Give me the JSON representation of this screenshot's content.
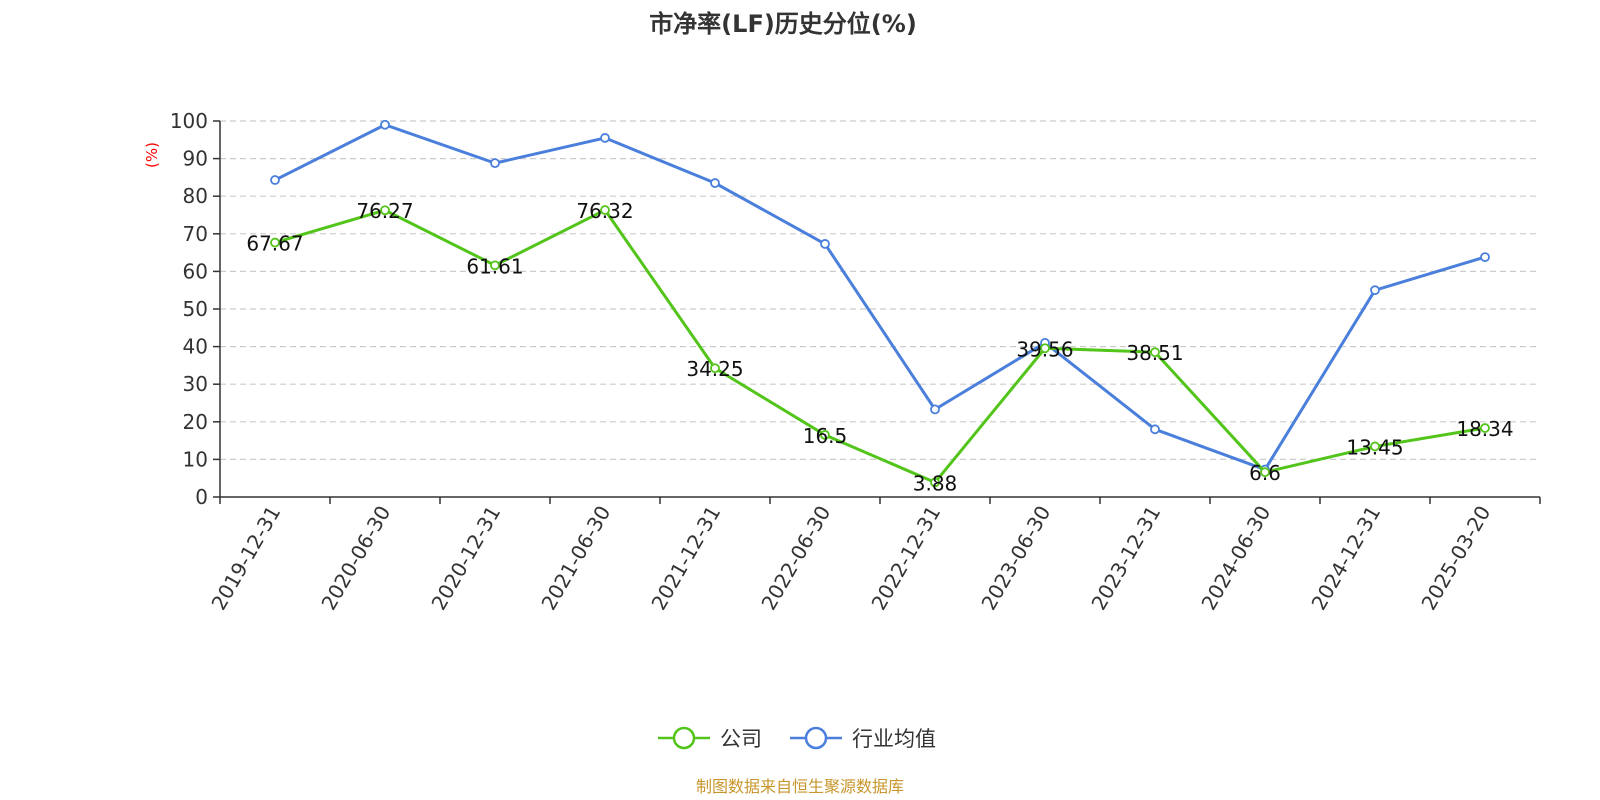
{
  "chart_data": {
    "type": "line",
    "title": "市净率(LF)历史分位(%)",
    "ylabel": "(%)",
    "ylabel_color": "#ff0000",
    "ylim": [
      0,
      100
    ],
    "yticks": [
      0,
      10,
      20,
      30,
      40,
      50,
      60,
      70,
      80,
      90,
      100
    ],
    "grid": true,
    "legend_position": "bottom-center",
    "categories": [
      "2019-12-31",
      "2020-06-30",
      "2020-12-31",
      "2021-06-30",
      "2021-12-31",
      "2022-06-30",
      "2022-12-31",
      "2023-06-30",
      "2023-12-31",
      "2024-06-30",
      "2024-12-31",
      "2025-03-20"
    ],
    "series": [
      {
        "name": "公司",
        "color": "#52c41a",
        "values": [
          67.67,
          76.27,
          61.61,
          76.32,
          34.25,
          16.5,
          3.88,
          39.56,
          38.51,
          6.6,
          13.45,
          18.34
        ],
        "show_labels": true
      },
      {
        "name": "行业均值",
        "color": "#4a7fdc",
        "values": [
          84.3,
          99.0,
          88.8,
          95.5,
          83.5,
          67.3,
          23.3,
          41.0,
          18.0,
          7.3,
          55.0,
          63.8
        ],
        "show_labels": false
      }
    ],
    "source": "制图数据来自恒生聚源数据库",
    "source_color": "#c8962c"
  }
}
